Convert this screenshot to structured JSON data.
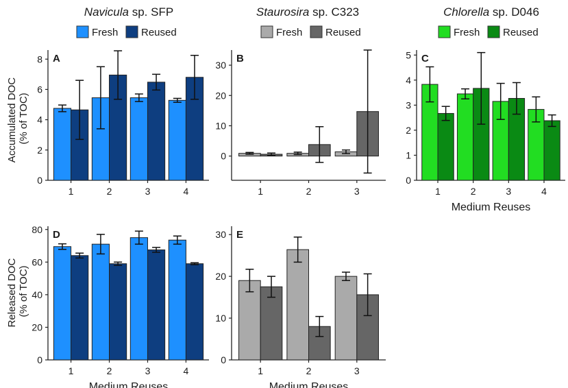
{
  "figure": {
    "column_titles": [
      {
        "genus": "Navicula",
        "rest": " sp. SFP"
      },
      {
        "genus": "Staurosira",
        "rest": " sp. C323"
      },
      {
        "genus": "Chlorella",
        "rest": " sp. D046"
      }
    ],
    "row_ylabels": [
      [
        "Accumulated DOC",
        "(% of TOC)"
      ],
      [
        "Released DOC",
        "(% of TOC)"
      ]
    ]
  },
  "legends": [
    {
      "items": [
        {
          "label": "Fresh",
          "color": "#1E90FF"
        },
        {
          "label": "Reused",
          "color": "#0E3E80"
        }
      ]
    },
    {
      "items": [
        {
          "label": "Fresh",
          "color": "#AAAAAA"
        },
        {
          "label": "Reused",
          "color": "#666666"
        }
      ]
    },
    {
      "items": [
        {
          "label": "Fresh",
          "color": "#22DD22"
        },
        {
          "label": "Reused",
          "color": "#0A8A14"
        }
      ]
    }
  ],
  "chart_data": [
    {
      "type": "bar",
      "panel": "A",
      "title": "Navicula sp. SFP",
      "categories": [
        "1",
        "2",
        "3",
        "4"
      ],
      "xlabel": "",
      "ylabel": "Accumulated DOC (% of TOC)",
      "ylim": [
        0,
        8.6
      ],
      "yticks": [
        0,
        2,
        4,
        6,
        8
      ],
      "series": [
        {
          "name": "Fresh",
          "color": "#1E90FF",
          "values": [
            4.75,
            5.45,
            5.45,
            5.28
          ],
          "errors": [
            0.22,
            2.05,
            0.25,
            0.13
          ]
        },
        {
          "name": "Reused",
          "color": "#0E3E80",
          "values": [
            4.65,
            6.95,
            6.48,
            6.8
          ],
          "errors": [
            1.95,
            1.6,
            0.52,
            1.45
          ]
        }
      ]
    },
    {
      "type": "bar",
      "panel": "B",
      "title": "Staurosira sp. C323",
      "categories": [
        "1",
        "2",
        "3"
      ],
      "xlabel": "",
      "ylabel": "",
      "ylim": [
        -8,
        35
      ],
      "yticks": [
        0,
        10,
        20,
        30
      ],
      "series": [
        {
          "name": "Fresh",
          "color": "#AAAAAA",
          "values": [
            0.9,
            0.9,
            1.4
          ],
          "errors": [
            0.3,
            0.4,
            0.6
          ]
        },
        {
          "name": "Reused",
          "color": "#666666",
          "values": [
            0.6,
            3.8,
            14.7
          ],
          "errors": [
            0.4,
            5.9,
            20.3
          ]
        }
      ]
    },
    {
      "type": "bar",
      "panel": "C",
      "title": "Chlorella sp. D046",
      "categories": [
        "1",
        "2",
        "3",
        "4"
      ],
      "xlabel": "Medium Reuses",
      "ylabel": "",
      "ylim": [
        0,
        5.2
      ],
      "yticks": [
        0,
        1,
        2,
        3,
        4,
        5
      ],
      "series": [
        {
          "name": "Fresh",
          "color": "#22DD22",
          "values": [
            3.83,
            3.45,
            3.15,
            2.83
          ],
          "errors": [
            0.7,
            0.2,
            0.72,
            0.5
          ]
        },
        {
          "name": "Reused",
          "color": "#0A8A14",
          "values": [
            2.67,
            3.67,
            3.27,
            2.38
          ],
          "errors": [
            0.28,
            1.43,
            0.63,
            0.23
          ]
        }
      ]
    },
    {
      "type": "bar",
      "panel": "D",
      "title": "",
      "categories": [
        "1",
        "2",
        "3",
        "4"
      ],
      "xlabel": "Medium Reuses",
      "ylabel": "Released DOC (% of TOC)",
      "ylim": [
        0,
        82
      ],
      "yticks": [
        0,
        20,
        40,
        60,
        80
      ],
      "series": [
        {
          "name": "Fresh",
          "color": "#1E90FF",
          "values": [
            69.5,
            71,
            75,
            73.5
          ],
          "errors": [
            1.7,
            6,
            4,
            2.5
          ]
        },
        {
          "name": "Reused",
          "color": "#0E3E80",
          "values": [
            64,
            59,
            67.5,
            59
          ],
          "errors": [
            1.5,
            1,
            1.5,
            0.6
          ]
        }
      ]
    },
    {
      "type": "bar",
      "panel": "E",
      "title": "",
      "categories": [
        "1",
        "2",
        "3"
      ],
      "xlabel": "Medium Reuses",
      "ylabel": "",
      "ylim": [
        0,
        32
      ],
      "yticks": [
        0,
        10,
        20,
        30
      ],
      "series": [
        {
          "name": "Fresh",
          "color": "#AAAAAA",
          "values": [
            19,
            26.4,
            20
          ],
          "errors": [
            2.7,
            3,
            1
          ]
        },
        {
          "name": "Reused",
          "color": "#666666",
          "values": [
            17.5,
            8,
            15.6
          ],
          "errors": [
            2.5,
            2.4,
            5
          ]
        }
      ]
    }
  ]
}
